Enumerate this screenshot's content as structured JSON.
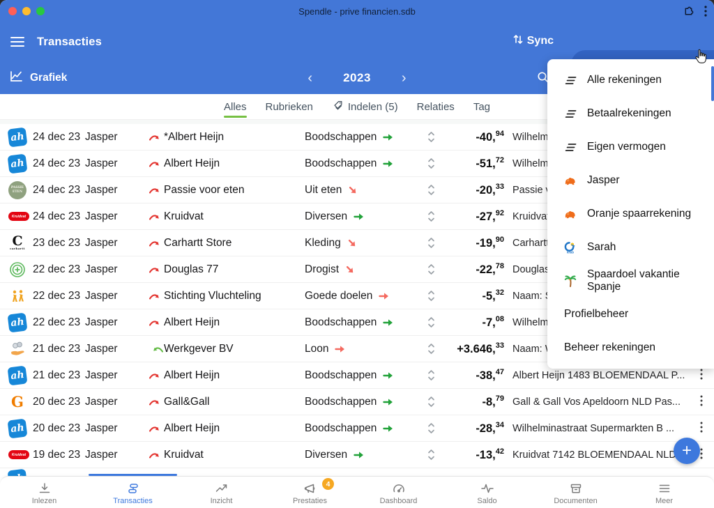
{
  "window": {
    "title": "Spendle - prive financien.sdb"
  },
  "header": {
    "title": "Transacties",
    "sync_label": "Sync",
    "accounts_button": "Betaalrekeningen",
    "graph_label": "Grafiek",
    "year": "2023",
    "prev_glyph": "‹",
    "next_glyph": "›"
  },
  "filter_tabs": [
    {
      "label": "Alles",
      "active": true
    },
    {
      "label": "Rubrieken",
      "active": false
    },
    {
      "label": "Indelen (5)",
      "icon": "tag-icon",
      "active": false
    },
    {
      "label": "Relaties",
      "active": false
    },
    {
      "label": "Tag",
      "active": false
    }
  ],
  "account_menu": [
    {
      "icon": "lines",
      "label": "Alle rekeningen"
    },
    {
      "icon": "lines",
      "label": "Betaalrekeningen"
    },
    {
      "icon": "lines",
      "label": "Eigen vermogen"
    },
    {
      "icon": "ing-lion",
      "label": "Jasper"
    },
    {
      "icon": "ing-lion",
      "label": "Oranje spaarrekening"
    },
    {
      "icon": "knab",
      "label": "Sarah"
    },
    {
      "icon": "palm-tree",
      "label": "Spaardoel vakantie Spanje"
    },
    {
      "icon": null,
      "label": "Profielbeheer"
    },
    {
      "icon": null,
      "label": "Beheer rekeningen"
    }
  ],
  "transactions": [
    {
      "logo": "albert-heijn",
      "date": "24 dec 23",
      "person": "Jasper",
      "direction": "out",
      "payee": "*Albert Heijn",
      "category": "Boodschappen",
      "trend": "right-green",
      "amount": "-40,94",
      "description": "Wilhelmi",
      "menu": false
    },
    {
      "logo": "albert-heijn",
      "date": "24 dec 23",
      "person": "Jasper",
      "direction": "out",
      "payee": "Albert Heijn",
      "category": "Boodschappen",
      "trend": "right-green",
      "amount": "-51,72",
      "description": "Wilhelmi",
      "menu": false
    },
    {
      "logo": "passie-voor-eten",
      "date": "24 dec 23",
      "person": "Jasper",
      "direction": "out",
      "payee": "Passie voor eten",
      "category": "Uit eten",
      "trend": "down-red",
      "amount": "-20,33",
      "description": "Passie vo",
      "menu": false
    },
    {
      "logo": "kruidvat",
      "date": "24 dec 23",
      "person": "Jasper",
      "direction": "out",
      "payee": "Kruidvat",
      "category": "Diversen",
      "trend": "right-green",
      "amount": "-27,92",
      "description": "Kruidvat",
      "menu": false
    },
    {
      "logo": "carhartt",
      "date": "23 dec 23",
      "person": "Jasper",
      "direction": "out",
      "payee": "Carhartt Store",
      "category": "Kleding",
      "trend": "down-red",
      "amount": "-19,90",
      "description": "Carhartt",
      "menu": false
    },
    {
      "logo": "douglas",
      "date": "22 dec 23",
      "person": "Jasper",
      "direction": "out",
      "payee": "Douglas 77",
      "category": "Drogist",
      "trend": "down-red",
      "amount": "-22,78",
      "description": "Douglas",
      "menu": false
    },
    {
      "logo": "stichting-vluchteling",
      "date": "22 dec 23",
      "person": "Jasper",
      "direction": "out",
      "payee": "Stichting Vluchteling",
      "category": "Goede doelen",
      "trend": "right-red",
      "amount": "-5,32",
      "description": "Naam: S",
      "menu": false
    },
    {
      "logo": "albert-heijn",
      "date": "22 dec 23",
      "person": "Jasper",
      "direction": "out",
      "payee": "Albert Heijn",
      "category": "Boodschappen",
      "trend": "right-green",
      "amount": "-7,08",
      "description": "Wilhelmi",
      "menu": false
    },
    {
      "logo": "hand-coins",
      "date": "21 dec 23",
      "person": "Jasper",
      "direction": "in",
      "payee": "Werkgever BV",
      "category": "Loon",
      "trend": "right-red",
      "amount": "+3.646,33",
      "description": "Naam: W",
      "menu": false
    },
    {
      "logo": "albert-heijn",
      "date": "21 dec 23",
      "person": "Jasper",
      "direction": "out",
      "payee": "Albert Heijn",
      "category": "Boodschappen",
      "trend": "right-green",
      "amount": "-38,47",
      "description": "Albert Heijn 1483 BLOEMENDAAL P...",
      "menu": true
    },
    {
      "logo": "gall-gall",
      "date": "20 dec 23",
      "person": "Jasper",
      "direction": "out",
      "payee": "Gall&Gall",
      "category": "Boodschappen",
      "trend": "right-green",
      "amount": "-8,79",
      "description": "Gall & Gall Vos Apeldoorn NLD Pas...",
      "menu": true
    },
    {
      "logo": "albert-heijn",
      "date": "20 dec 23",
      "person": "Jasper",
      "direction": "out",
      "payee": "Albert Heijn",
      "category": "Boodschappen",
      "trend": "right-green",
      "amount": "-28,34",
      "description": "Wilhelminastraat Supermarkten B ...",
      "menu": true
    },
    {
      "logo": "kruidvat",
      "date": "19 dec 23",
      "person": "Jasper",
      "direction": "out",
      "payee": "Kruidvat",
      "category": "Diversen",
      "trend": "right-green",
      "amount": "-13,42",
      "description": "Kruidvat 7142 BLOEMENDAAL NLD...",
      "menu": true
    }
  ],
  "bottom_nav": [
    {
      "icon": "download",
      "label": "Inlezen",
      "active": false
    },
    {
      "icon": "transactions",
      "label": "Transacties",
      "active": true
    },
    {
      "icon": "trend",
      "label": "Inzicht",
      "active": false
    },
    {
      "icon": "megaphone",
      "label": "Prestaties",
      "badge": "4",
      "active": false
    },
    {
      "icon": "gauge",
      "label": "Dashboard",
      "active": false
    },
    {
      "icon": "pulse",
      "label": "Saldo",
      "active": false
    },
    {
      "icon": "archive",
      "label": "Documenten",
      "active": false
    },
    {
      "icon": "menu",
      "label": "Meer",
      "active": false
    }
  ],
  "fab": {
    "label": "+"
  },
  "colors": {
    "header_blue": "#4377d7",
    "pill_blue": "#3263c2",
    "accent_blue": "#3d78dd",
    "green": "#22a23a",
    "red": "#f4695f",
    "badge_orange": "#f6a822",
    "tab_green": "#76c043"
  }
}
